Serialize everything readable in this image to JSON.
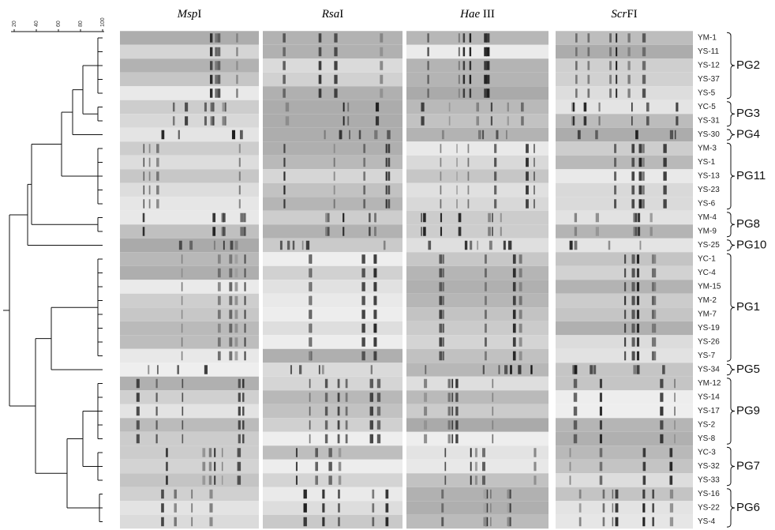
{
  "headers": [
    {
      "italic": "Msp",
      "roman": "I"
    },
    {
      "italic": "Rsa",
      "roman": "I"
    },
    {
      "italic": "Hae",
      "roman": " III"
    },
    {
      "italic": "Scr",
      "roman": "FI"
    }
  ],
  "scale_ticks": [
    20,
    40,
    60,
    80,
    100
  ],
  "samples": [
    "YM-1",
    "YS-11",
    "YS-12",
    "YS-37",
    "YS-5",
    "YC-5",
    "YS-31",
    "YS-30",
    "YM-3",
    "YS-1",
    "YS-13",
    "YS-23",
    "YS-6",
    "YM-4",
    "YM-9",
    "YS-25",
    "YC-1",
    "YC-4",
    "YM-15",
    "YM-2",
    "YM-7",
    "YS-19",
    "YS-26",
    "YS-7",
    "YS-34",
    "YM-12",
    "YS-14",
    "YS-17",
    "YS-2",
    "YS-8",
    "YC-3",
    "YS-32",
    "YS-33",
    "YS-16",
    "YS-22",
    "YS-4"
  ],
  "groups": [
    "PG2",
    "PG3",
    "PG4",
    "PG11",
    "PG8",
    "PG10",
    "PG1",
    "PG5",
    "PG9",
    "PG7",
    "PG6"
  ]
}
